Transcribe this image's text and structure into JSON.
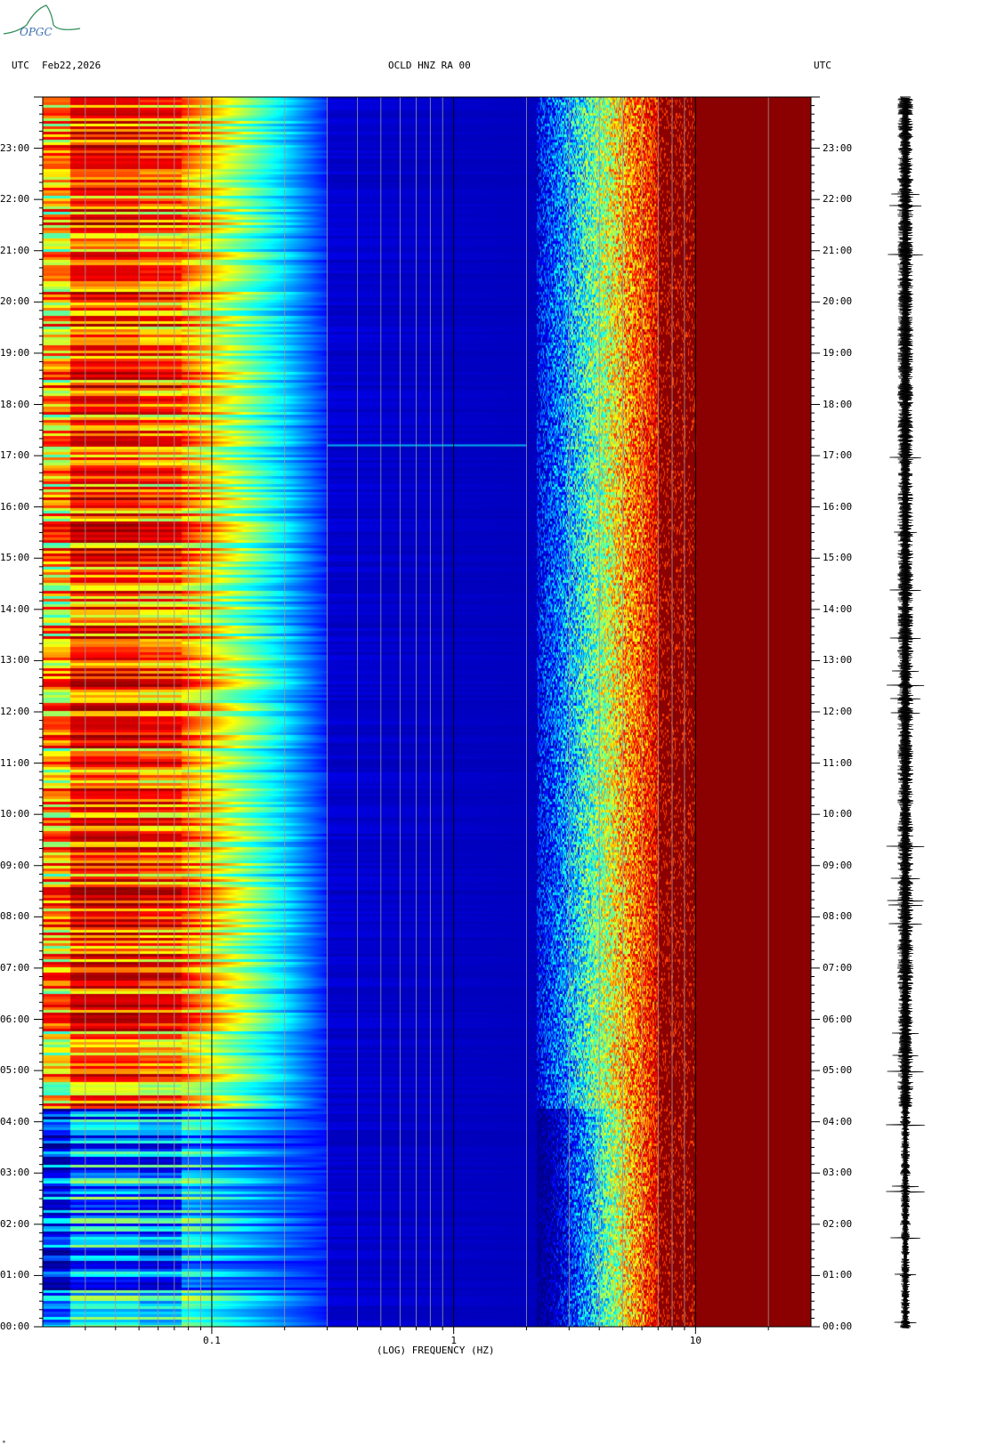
{
  "header": {
    "left_utc": "UTC",
    "date": "Feb22,2026",
    "station": "OCLD HNZ RA 00",
    "right_utc": "UTC"
  },
  "logo_text": "OPGC",
  "footer_mark": "ᵐ",
  "colors": {
    "dark_blue": "#00008b",
    "blue": "#0000ff",
    "cyan": "#00ffff",
    "yellow": "#ffff00",
    "red": "#ff0000",
    "dark_red": "#8b0000"
  },
  "chart_data": {
    "type": "heatmap",
    "title": "OCLD HNZ RA 00",
    "xlabel": "(LOG) FREQUENCY (HZ)",
    "x_scale": "log",
    "xlim": [
      0.02,
      30
    ],
    "x_ticks": [
      {
        "value": 0.1,
        "label": "0.1"
      },
      {
        "value": 1,
        "label": "1"
      },
      {
        "value": 10,
        "label": "10"
      }
    ],
    "ylabel": "UTC",
    "ylim_hours": [
      0,
      24
    ],
    "y_ticks": [
      "00:00",
      "01:00",
      "02:00",
      "03:00",
      "04:00",
      "05:00",
      "06:00",
      "07:00",
      "08:00",
      "09:00",
      "10:00",
      "11:00",
      "12:00",
      "13:00",
      "14:00",
      "15:00",
      "16:00",
      "17:00",
      "18:00",
      "19:00",
      "20:00",
      "21:00",
      "22:00",
      "23:00"
    ],
    "colormap": [
      "#00008b",
      "#0000ff",
      "#00ffff",
      "#ffff00",
      "#ff0000",
      "#8b0000"
    ],
    "features": [
      {
        "description": "high energy band",
        "freq_range_hz": [
          0.02,
          0.07
        ],
        "level": "yellow-red"
      },
      {
        "description": "low energy band",
        "freq_range_hz": [
          0.3,
          2
        ],
        "level": "dark blue"
      },
      {
        "description": "transition band",
        "freq_range_hz": [
          2,
          7
        ],
        "level": "cyan-yellow"
      },
      {
        "description": "saturated band",
        "freq_range_hz": [
          7,
          30
        ],
        "level": "dark red"
      },
      {
        "description": "narrow event",
        "freq_range_hz": [
          0.3,
          2
        ],
        "time_utc": "17:12"
      }
    ],
    "grid": true,
    "side_panel": "waveform trace"
  }
}
